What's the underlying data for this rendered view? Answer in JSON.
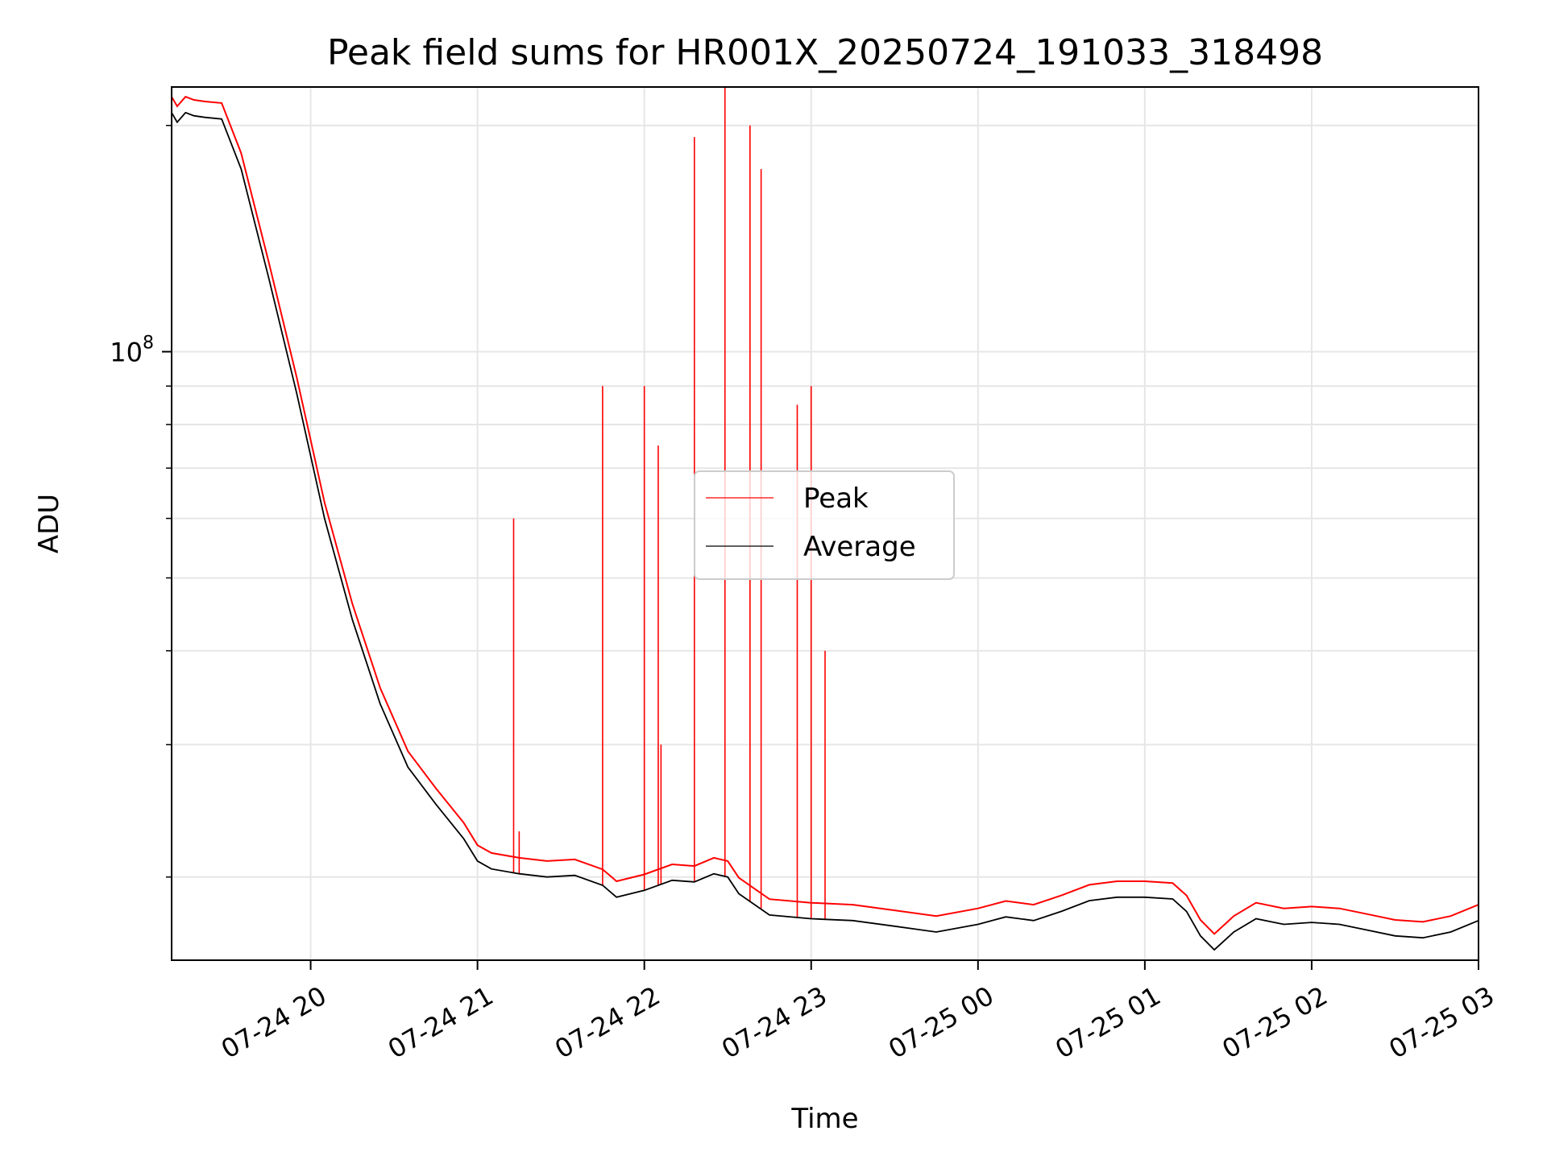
{
  "chart_data": {
    "type": "line",
    "title": "Peak field sums for HR001X_20250724_191033_318498",
    "xlabel": "Time",
    "ylabel": "ADU",
    "yscale": "log",
    "ylim": [
      15500000,
      225000000
    ],
    "xlim": [
      "2025-07-24 19:10",
      "2025-07-25 03:00"
    ],
    "x_ticks": [
      {
        "t": "2025-07-24 20:00",
        "label": "07-24 20"
      },
      {
        "t": "2025-07-24 21:00",
        "label": "07-24 21"
      },
      {
        "t": "2025-07-24 22:00",
        "label": "07-24 22"
      },
      {
        "t": "2025-07-24 23:00",
        "label": "07-24 23"
      },
      {
        "t": "2025-07-25 00:00",
        "label": "07-25 00"
      },
      {
        "t": "2025-07-25 01:00",
        "label": "07-25 01"
      },
      {
        "t": "2025-07-25 02:00",
        "label": "07-25 02"
      },
      {
        "t": "2025-07-25 03:00",
        "label": "07-25 03"
      }
    ],
    "y_ticks": [
      {
        "value": 100000000,
        "base": "10",
        "exp": "8"
      }
    ],
    "y_minor_ticks": [
      20000000,
      30000000,
      40000000,
      50000000,
      60000000,
      70000000,
      80000000,
      90000000,
      200000000
    ],
    "grid": true,
    "legend": {
      "position": "center",
      "entries": [
        "Peak",
        "Average"
      ]
    },
    "colors": {
      "Peak": "#ff0000",
      "Average": "#000000"
    },
    "series": [
      {
        "name": "Average",
        "color": "#000000",
        "points": [
          [
            "2025-07-24 19:10",
            208000000
          ],
          [
            "2025-07-24 19:12",
            202000000
          ],
          [
            "2025-07-24 19:15",
            208000000
          ],
          [
            "2025-07-24 19:18",
            206000000
          ],
          [
            "2025-07-24 19:22",
            205000000
          ],
          [
            "2025-07-24 19:28",
            204000000
          ],
          [
            "2025-07-24 19:35",
            175000000
          ],
          [
            "2025-07-24 19:45",
            125000000
          ],
          [
            "2025-07-24 19:55",
            88000000
          ],
          [
            "2025-07-24 20:05",
            60000000
          ],
          [
            "2025-07-24 20:15",
            44000000
          ],
          [
            "2025-07-24 20:25",
            34000000
          ],
          [
            "2025-07-24 20:35",
            28000000
          ],
          [
            "2025-07-24 20:45",
            25000000
          ],
          [
            "2025-07-24 20:55",
            22500000
          ],
          [
            "2025-07-24 21:00",
            21000000
          ],
          [
            "2025-07-24 21:05",
            20500000
          ],
          [
            "2025-07-24 21:15",
            20200000
          ],
          [
            "2025-07-24 21:25",
            20000000
          ],
          [
            "2025-07-24 21:35",
            20100000
          ],
          [
            "2025-07-24 21:45",
            19500000
          ],
          [
            "2025-07-24 21:50",
            18800000
          ],
          [
            "2025-07-24 22:00",
            19200000
          ],
          [
            "2025-07-24 22:10",
            19800000
          ],
          [
            "2025-07-24 22:18",
            19700000
          ],
          [
            "2025-07-24 22:25",
            20200000
          ],
          [
            "2025-07-24 22:30",
            20000000
          ],
          [
            "2025-07-24 22:34",
            19000000
          ],
          [
            "2025-07-24 22:45",
            17800000
          ],
          [
            "2025-07-24 23:00",
            17600000
          ],
          [
            "2025-07-24 23:15",
            17500000
          ],
          [
            "2025-07-24 23:30",
            17200000
          ],
          [
            "2025-07-24 23:45",
            16900000
          ],
          [
            "2025-07-25 00:00",
            17300000
          ],
          [
            "2025-07-25 00:10",
            17700000
          ],
          [
            "2025-07-25 00:20",
            17500000
          ],
          [
            "2025-07-25 00:30",
            18000000
          ],
          [
            "2025-07-25 00:40",
            18600000
          ],
          [
            "2025-07-25 00:50",
            18800000
          ],
          [
            "2025-07-25 01:00",
            18800000
          ],
          [
            "2025-07-25 01:10",
            18700000
          ],
          [
            "2025-07-25 01:15",
            18000000
          ],
          [
            "2025-07-25 01:20",
            16700000
          ],
          [
            "2025-07-25 01:25",
            16000000
          ],
          [
            "2025-07-25 01:32",
            16900000
          ],
          [
            "2025-07-25 01:40",
            17600000
          ],
          [
            "2025-07-25 01:50",
            17300000
          ],
          [
            "2025-07-25 02:00",
            17400000
          ],
          [
            "2025-07-25 02:10",
            17300000
          ],
          [
            "2025-07-25 02:20",
            17000000
          ],
          [
            "2025-07-25 02:30",
            16700000
          ],
          [
            "2025-07-25 02:40",
            16600000
          ],
          [
            "2025-07-25 02:50",
            16900000
          ],
          [
            "2025-07-25 03:00",
            17500000
          ]
        ]
      },
      {
        "name": "Peak",
        "color": "#ff0000",
        "points": [
          [
            "2025-07-24 21:13",
            60000000
          ],
          [
            "2025-07-24 21:15",
            23000000
          ],
          [
            "2025-07-24 21:45",
            90000000
          ],
          [
            "2025-07-24 22:00",
            90000000
          ],
          [
            "2025-07-24 22:05",
            75000000
          ],
          [
            "2025-07-24 22:06",
            30000000
          ],
          [
            "2025-07-24 22:18",
            193000000
          ],
          [
            "2025-07-24 22:29",
            225000000
          ],
          [
            "2025-07-24 22:38",
            200000000
          ],
          [
            "2025-07-24 22:42",
            175000000
          ],
          [
            "2025-07-24 22:55",
            85000000
          ],
          [
            "2025-07-24 23:00",
            90000000
          ],
          [
            "2025-07-24 23:05",
            40000000
          ]
        ]
      }
    ]
  }
}
